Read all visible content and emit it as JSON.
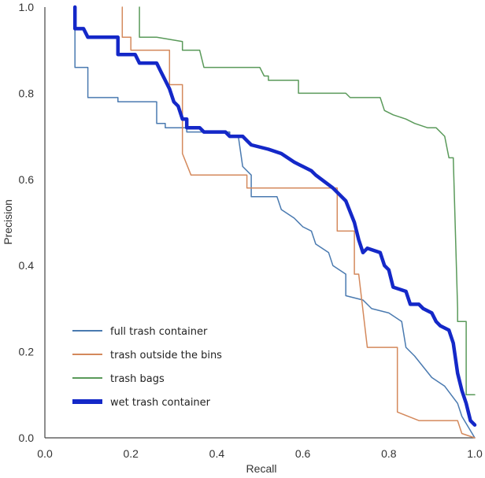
{
  "chart_data": {
    "type": "line",
    "title": "",
    "xlabel": "Recall",
    "ylabel": "Precision",
    "xlim": [
      0,
      1
    ],
    "ylim": [
      0,
      1
    ],
    "xticks": [
      "0.0",
      "0.2",
      "0.4",
      "0.6",
      "0.8",
      "1.0"
    ],
    "yticks": [
      "0.0",
      "0.2",
      "0.4",
      "0.6",
      "0.8",
      "1.0"
    ],
    "grid": false,
    "legend_position": "bottom-left",
    "series": [
      {
        "name": "full trash container",
        "color": "#4a7ab0",
        "style": "thin",
        "points": [
          [
            0.07,
            1.0
          ],
          [
            0.07,
            0.86
          ],
          [
            0.1,
            0.86
          ],
          [
            0.1,
            0.79
          ],
          [
            0.17,
            0.79
          ],
          [
            0.17,
            0.78
          ],
          [
            0.26,
            0.78
          ],
          [
            0.26,
            0.73
          ],
          [
            0.28,
            0.73
          ],
          [
            0.28,
            0.72
          ],
          [
            0.33,
            0.72
          ],
          [
            0.33,
            0.71
          ],
          [
            0.43,
            0.71
          ],
          [
            0.43,
            0.7
          ],
          [
            0.45,
            0.7
          ],
          [
            0.46,
            0.63
          ],
          [
            0.48,
            0.61
          ],
          [
            0.48,
            0.56
          ],
          [
            0.54,
            0.56
          ],
          [
            0.55,
            0.53
          ],
          [
            0.58,
            0.51
          ],
          [
            0.6,
            0.49
          ],
          [
            0.62,
            0.48
          ],
          [
            0.63,
            0.45
          ],
          [
            0.66,
            0.43
          ],
          [
            0.67,
            0.4
          ],
          [
            0.7,
            0.38
          ],
          [
            0.7,
            0.33
          ],
          [
            0.74,
            0.32
          ],
          [
            0.76,
            0.3
          ],
          [
            0.8,
            0.29
          ],
          [
            0.83,
            0.27
          ],
          [
            0.84,
            0.21
          ],
          [
            0.86,
            0.19
          ],
          [
            0.9,
            0.14
          ],
          [
            0.93,
            0.12
          ],
          [
            0.96,
            0.08
          ],
          [
            0.97,
            0.05
          ],
          [
            1.0,
            0.0
          ]
        ]
      },
      {
        "name": "trash outside the bins",
        "color": "#d4895c",
        "style": "thin",
        "points": [
          [
            0.18,
            1.0
          ],
          [
            0.18,
            0.93
          ],
          [
            0.2,
            0.93
          ],
          [
            0.2,
            0.9
          ],
          [
            0.29,
            0.9
          ],
          [
            0.29,
            0.82
          ],
          [
            0.32,
            0.82
          ],
          [
            0.32,
            0.66
          ],
          [
            0.34,
            0.61
          ],
          [
            0.47,
            0.61
          ],
          [
            0.47,
            0.58
          ],
          [
            0.58,
            0.58
          ],
          [
            0.58,
            0.58
          ],
          [
            0.68,
            0.58
          ],
          [
            0.68,
            0.48
          ],
          [
            0.72,
            0.48
          ],
          [
            0.72,
            0.38
          ],
          [
            0.73,
            0.38
          ],
          [
            0.75,
            0.21
          ],
          [
            0.76,
            0.21
          ],
          [
            0.82,
            0.21
          ],
          [
            0.82,
            0.06
          ],
          [
            0.87,
            0.04
          ],
          [
            0.96,
            0.04
          ],
          [
            0.97,
            0.01
          ],
          [
            1.0,
            0.0
          ]
        ]
      },
      {
        "name": "trash bags",
        "color": "#5a9a5a",
        "style": "thin",
        "points": [
          [
            0.22,
            1.0
          ],
          [
            0.22,
            0.93
          ],
          [
            0.26,
            0.93
          ],
          [
            0.32,
            0.92
          ],
          [
            0.32,
            0.9
          ],
          [
            0.36,
            0.9
          ],
          [
            0.37,
            0.86
          ],
          [
            0.5,
            0.86
          ],
          [
            0.51,
            0.84
          ],
          [
            0.52,
            0.84
          ],
          [
            0.52,
            0.83
          ],
          [
            0.59,
            0.83
          ],
          [
            0.59,
            0.8
          ],
          [
            0.7,
            0.8
          ],
          [
            0.71,
            0.79
          ],
          [
            0.78,
            0.79
          ],
          [
            0.79,
            0.76
          ],
          [
            0.81,
            0.75
          ],
          [
            0.84,
            0.74
          ],
          [
            0.86,
            0.73
          ],
          [
            0.89,
            0.72
          ],
          [
            0.91,
            0.72
          ],
          [
            0.93,
            0.7
          ],
          [
            0.94,
            0.65
          ],
          [
            0.95,
            0.65
          ],
          [
            0.96,
            0.3
          ],
          [
            0.96,
            0.27
          ],
          [
            0.98,
            0.27
          ],
          [
            0.98,
            0.1
          ],
          [
            1.0,
            0.1
          ]
        ]
      },
      {
        "name": "wet trash container",
        "color": "#1428c8",
        "style": "thick",
        "points": [
          [
            0.07,
            1.0
          ],
          [
            0.07,
            0.95
          ],
          [
            0.09,
            0.95
          ],
          [
            0.1,
            0.93
          ],
          [
            0.17,
            0.93
          ],
          [
            0.17,
            0.89
          ],
          [
            0.21,
            0.89
          ],
          [
            0.22,
            0.87
          ],
          [
            0.26,
            0.87
          ],
          [
            0.27,
            0.85
          ],
          [
            0.28,
            0.83
          ],
          [
            0.29,
            0.81
          ],
          [
            0.3,
            0.78
          ],
          [
            0.31,
            0.77
          ],
          [
            0.32,
            0.74
          ],
          [
            0.33,
            0.74
          ],
          [
            0.33,
            0.72
          ],
          [
            0.36,
            0.72
          ],
          [
            0.37,
            0.71
          ],
          [
            0.42,
            0.71
          ],
          [
            0.43,
            0.7
          ],
          [
            0.46,
            0.7
          ],
          [
            0.47,
            0.69
          ],
          [
            0.48,
            0.68
          ],
          [
            0.52,
            0.67
          ],
          [
            0.55,
            0.66
          ],
          [
            0.58,
            0.64
          ],
          [
            0.6,
            0.63
          ],
          [
            0.62,
            0.62
          ],
          [
            0.63,
            0.61
          ],
          [
            0.67,
            0.58
          ],
          [
            0.7,
            0.55
          ],
          [
            0.72,
            0.5
          ],
          [
            0.73,
            0.46
          ],
          [
            0.74,
            0.43
          ],
          [
            0.75,
            0.44
          ],
          [
            0.78,
            0.43
          ],
          [
            0.79,
            0.4
          ],
          [
            0.8,
            0.39
          ],
          [
            0.81,
            0.35
          ],
          [
            0.84,
            0.34
          ],
          [
            0.85,
            0.31
          ],
          [
            0.87,
            0.31
          ],
          [
            0.88,
            0.3
          ],
          [
            0.9,
            0.29
          ],
          [
            0.91,
            0.27
          ],
          [
            0.92,
            0.26
          ],
          [
            0.94,
            0.25
          ],
          [
            0.95,
            0.22
          ],
          [
            0.96,
            0.15
          ],
          [
            0.97,
            0.11
          ],
          [
            0.98,
            0.08
          ],
          [
            0.99,
            0.04
          ],
          [
            1.0,
            0.03
          ]
        ]
      }
    ]
  }
}
